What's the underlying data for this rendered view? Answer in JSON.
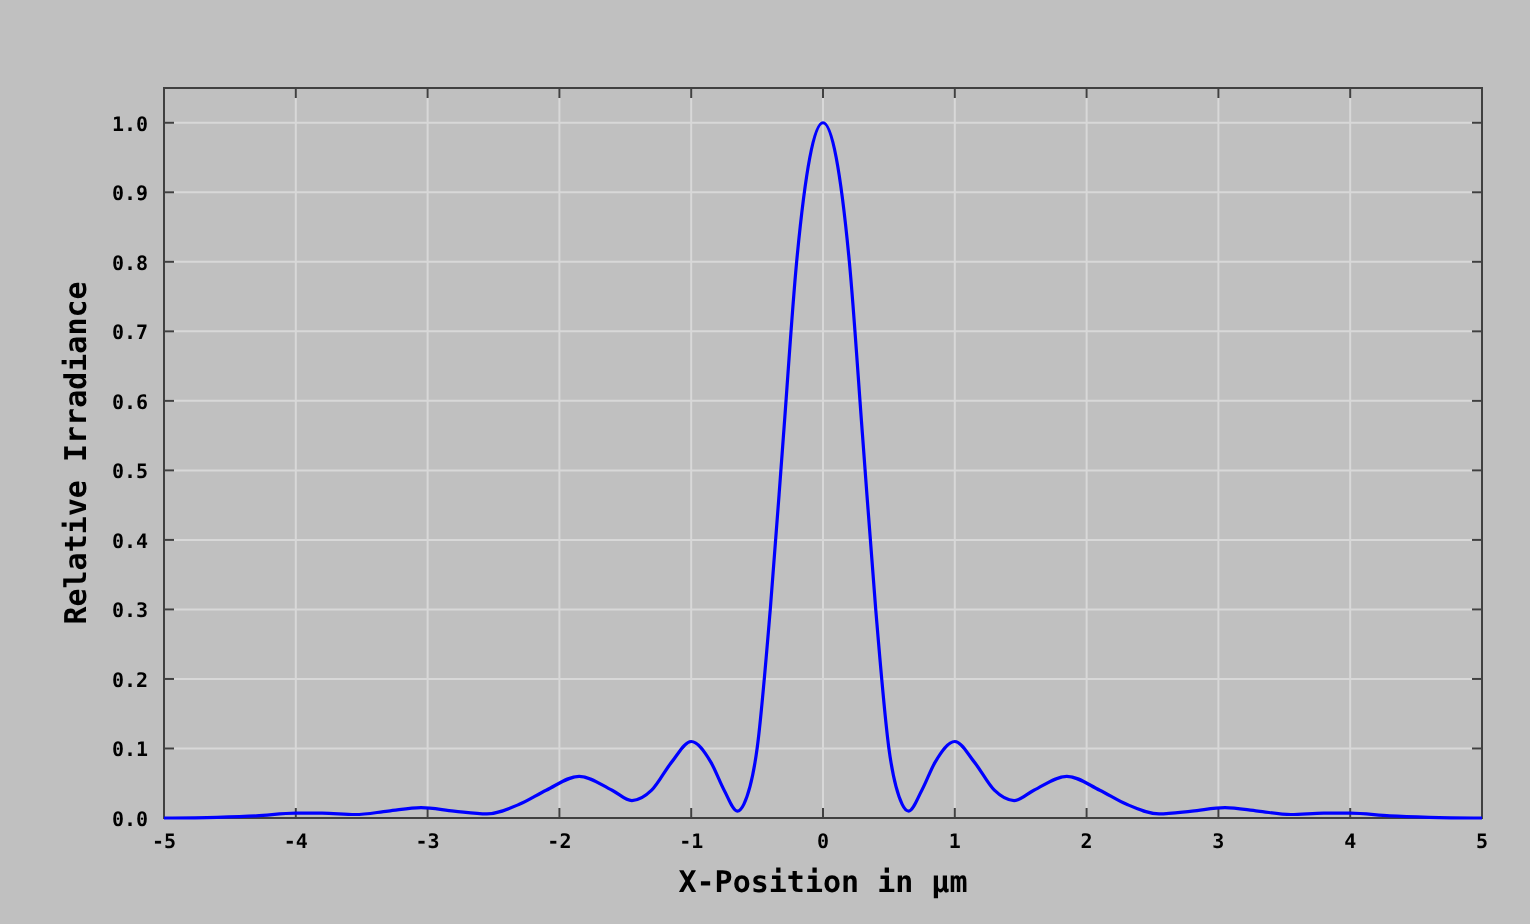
{
  "chart_data": {
    "type": "line",
    "xlabel": "X-Position in μm",
    "ylabel": "Relative Irradiance",
    "x": [
      -5,
      -4.6,
      -4.3,
      -4.0,
      -3.8,
      -3.55,
      -3.3,
      -3.05,
      -2.8,
      -2.55,
      -2.3,
      -2.1,
      -1.85,
      -1.6,
      -1.45,
      -1.3,
      -1.15,
      -1.0,
      -0.85,
      -0.75,
      -0.65,
      -0.6,
      -0.5,
      -0.4,
      -0.3,
      -0.2,
      -0.1,
      0,
      0.1,
      0.2,
      0.3,
      0.4,
      0.5,
      0.6,
      0.65,
      0.75,
      0.85,
      1.0,
      1.15,
      1.3,
      1.45,
      1.6,
      1.85,
      2.1,
      2.3,
      2.55,
      2.8,
      3.05,
      3.3,
      3.55,
      3.8,
      4.0,
      4.3,
      4.6,
      5
    ],
    "series": [
      {
        "color": "#0000ff",
        "values": [
          0,
          0.001,
          0.003,
          0.007,
          0.007,
          0.005,
          0.01,
          0.015,
          0.01,
          0.006,
          0.02,
          0.04,
          0.06,
          0.04,
          0.025,
          0.04,
          0.08,
          0.11,
          0.08,
          0.04,
          0.01,
          0.02,
          0.1,
          0.3,
          0.55,
          0.8,
          0.95,
          1.0,
          0.95,
          0.8,
          0.55,
          0.3,
          0.1,
          0.02,
          0.01,
          0.04,
          0.08,
          0.11,
          0.08,
          0.04,
          0.025,
          0.04,
          0.06,
          0.04,
          0.02,
          0.006,
          0.01,
          0.015,
          0.01,
          0.005,
          0.007,
          0.007,
          0.003,
          0.001,
          0
        ]
      }
    ],
    "xlim": [
      -5,
      5
    ],
    "xticks": [
      -5,
      -4,
      -3,
      -2,
      -1,
      0,
      1,
      2,
      3,
      4,
      5
    ],
    "ylim": [
      0,
      1.05
    ],
    "yticks": [
      {
        "value": 0,
        "label": "0.0"
      },
      {
        "value": 0.1,
        "label": "0.1"
      },
      {
        "value": 0.2,
        "label": "0.2"
      },
      {
        "value": 0.3,
        "label": "0.3"
      },
      {
        "value": 0.4,
        "label": "0.4"
      },
      {
        "value": 0.5,
        "label": "0.5"
      },
      {
        "value": 0.6,
        "label": "0.6"
      },
      {
        "value": 0.7,
        "label": "0.7"
      },
      {
        "value": 0.8,
        "label": "0.8"
      },
      {
        "value": 0.9,
        "label": "0.9"
      },
      {
        "value": 1,
        "label": "1.0"
      }
    ],
    "grid": true,
    "line_style": "solid"
  }
}
